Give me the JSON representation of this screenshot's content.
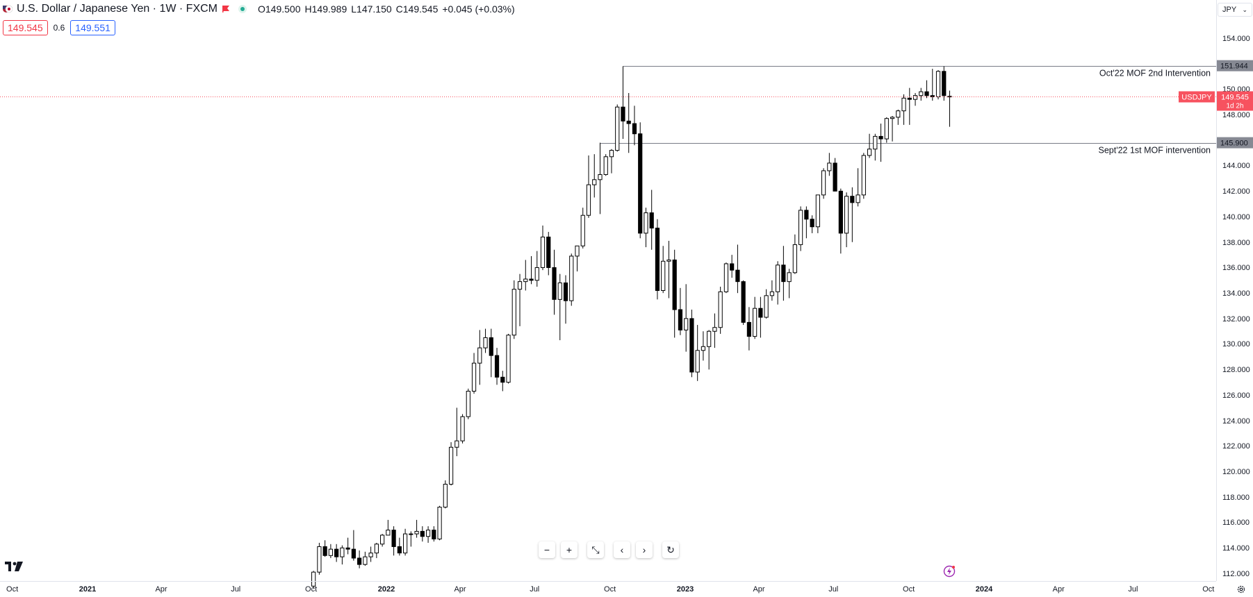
{
  "header": {
    "symbol_title": "U.S. Dollar / Japanese Yen · 1W · FXCM",
    "ohlc": {
      "o_label": "O",
      "o_value": "149.500",
      "h_label": "H",
      "h_value": "149.989",
      "l_label": "L",
      "l_value": "147.150",
      "c_label": "C",
      "c_value": "149.545",
      "change": "+0.045 (+0.03%)"
    },
    "bid": "149.545",
    "spread": "0.6",
    "ask": "149.551"
  },
  "currency_select": {
    "value": "JPY"
  },
  "colors": {
    "up_fill": "#ffffff",
    "down_fill": "#000000",
    "candle_stroke": "#000000",
    "price_line": "#f7525f",
    "level_line": "#787b86",
    "level_label_bg": "#868993",
    "bid": "#f23645",
    "ask": "#2962ff"
  },
  "chart_data": {
    "type": "candlestick",
    "title": "U.S. Dollar / Japanese Yen · 1W · FXCM",
    "y_axis_ticks": [
      "112.000",
      "114.000",
      "116.000",
      "118.000",
      "120.000",
      "122.000",
      "124.000",
      "126.000",
      "128.000",
      "130.000",
      "132.000",
      "134.000",
      "136.000",
      "138.000",
      "140.000",
      "142.000",
      "144.000",
      "146.000",
      "148.000",
      "150.000",
      "152.000",
      "154.000"
    ],
    "ylim": [
      111.5,
      157.1
    ],
    "x_axis_ticks": [
      {
        "date": "2020-10-01",
        "label": "Oct",
        "bold": false
      },
      {
        "date": "2021-01-01",
        "label": "2021",
        "bold": true
      },
      {
        "date": "2021-04-01",
        "label": "Apr",
        "bold": false
      },
      {
        "date": "2021-07-01",
        "label": "Jul",
        "bold": false
      },
      {
        "date": "2021-10-01",
        "label": "Oct",
        "bold": false
      },
      {
        "date": "2022-01-01",
        "label": "2022",
        "bold": true
      },
      {
        "date": "2022-04-01",
        "label": "Apr",
        "bold": false
      },
      {
        "date": "2022-07-01",
        "label": "Jul",
        "bold": false
      },
      {
        "date": "2022-10-01",
        "label": "Oct",
        "bold": false
      },
      {
        "date": "2023-01-01",
        "label": "2023",
        "bold": true
      },
      {
        "date": "2023-04-01",
        "label": "Apr",
        "bold": false
      },
      {
        "date": "2023-07-01",
        "label": "Jul",
        "bold": false
      },
      {
        "date": "2023-10-01",
        "label": "Oct",
        "bold": false
      },
      {
        "date": "2024-01-01",
        "label": "2024",
        "bold": true
      },
      {
        "date": "2024-04-01",
        "label": "Apr",
        "bold": false
      },
      {
        "date": "2024-07-01",
        "label": "Jul",
        "bold": false
      },
      {
        "date": "2024-10-01",
        "label": "Oct",
        "bold": false
      }
    ],
    "candles": [
      [
        "2021-10-04",
        111.1,
        112.3,
        110.9,
        112.2
      ],
      [
        "2021-10-11",
        112.2,
        114.5,
        112.0,
        114.2
      ],
      [
        "2021-10-18",
        114.2,
        114.7,
        113.4,
        113.5
      ],
      [
        "2021-10-25",
        113.5,
        114.4,
        113.3,
        114.0
      ],
      [
        "2021-11-01",
        114.0,
        114.4,
        113.0,
        113.4
      ],
      [
        "2021-11-08",
        113.4,
        114.3,
        112.8,
        114.1
      ],
      [
        "2021-11-15",
        114.1,
        114.9,
        113.6,
        114.0
      ],
      [
        "2021-11-22",
        114.0,
        115.5,
        113.1,
        113.3
      ],
      [
        "2021-11-29",
        113.3,
        113.9,
        112.5,
        112.8
      ],
      [
        "2021-12-06",
        112.8,
        113.8,
        112.7,
        113.4
      ],
      [
        "2021-12-13",
        113.4,
        114.2,
        113.0,
        113.7
      ],
      [
        "2021-12-20",
        113.7,
        114.5,
        113.3,
        114.4
      ],
      [
        "2021-12-27",
        114.4,
        115.2,
        114.2,
        115.1
      ],
      [
        "2022-01-03",
        115.1,
        116.3,
        115.1,
        115.5
      ],
      [
        "2022-01-10",
        115.5,
        115.8,
        113.5,
        114.2
      ],
      [
        "2022-01-17",
        114.2,
        114.9,
        113.5,
        113.7
      ],
      [
        "2022-01-24",
        113.7,
        115.6,
        113.5,
        115.2
      ],
      [
        "2022-01-31",
        115.2,
        115.4,
        114.2,
        115.2
      ],
      [
        "2022-02-07",
        115.2,
        116.3,
        114.9,
        115.4
      ],
      [
        "2022-02-14",
        115.4,
        115.8,
        114.6,
        115.0
      ],
      [
        "2022-02-21",
        115.0,
        115.8,
        114.5,
        115.5
      ],
      [
        "2022-02-28",
        115.5,
        115.8,
        114.6,
        114.8
      ],
      [
        "2022-03-07",
        114.8,
        117.4,
        114.7,
        117.3
      ],
      [
        "2022-03-14",
        117.3,
        119.4,
        117.2,
        119.1
      ],
      [
        "2022-03-21",
        119.1,
        122.4,
        119.0,
        122.0
      ],
      [
        "2022-03-28",
        122.0,
        125.1,
        121.3,
        122.5
      ],
      [
        "2022-04-04",
        122.5,
        124.6,
        122.3,
        124.4
      ],
      [
        "2022-04-11",
        124.4,
        126.6,
        124.2,
        126.4
      ],
      [
        "2022-04-18",
        126.4,
        129.4,
        126.2,
        128.6
      ],
      [
        "2022-04-25",
        128.6,
        131.2,
        126.9,
        129.8
      ],
      [
        "2022-05-02",
        129.8,
        131.3,
        129.4,
        130.6
      ],
      [
        "2022-05-09",
        130.6,
        131.3,
        127.5,
        129.2
      ],
      [
        "2022-05-16",
        129.2,
        129.8,
        126.9,
        127.5
      ],
      [
        "2022-05-23",
        127.5,
        128.0,
        126.4,
        127.1
      ],
      [
        "2022-05-30",
        127.1,
        130.9,
        127.0,
        130.8
      ],
      [
        "2022-06-06",
        130.8,
        135.1,
        130.5,
        134.4
      ],
      [
        "2022-06-13",
        134.4,
        135.6,
        131.5,
        135.0
      ],
      [
        "2022-06-20",
        135.0,
        136.7,
        134.3,
        135.2
      ],
      [
        "2022-06-27",
        135.2,
        137.0,
        134.8,
        135.1
      ],
      [
        "2022-07-04",
        135.1,
        137.4,
        134.6,
        136.1
      ],
      [
        "2022-07-11",
        136.1,
        139.4,
        135.9,
        138.5
      ],
      [
        "2022-07-18",
        138.5,
        138.9,
        135.5,
        136.1
      ],
      [
        "2022-07-25",
        136.1,
        137.5,
        132.4,
        133.6
      ],
      [
        "2022-08-01",
        133.6,
        135.6,
        130.4,
        134.9
      ],
      [
        "2022-08-08",
        134.9,
        135.5,
        131.7,
        133.5
      ],
      [
        "2022-08-15",
        133.5,
        137.2,
        133.1,
        137.0
      ],
      [
        "2022-08-22",
        137.0,
        137.8,
        135.8,
        137.8
      ],
      [
        "2022-08-29",
        137.8,
        140.8,
        137.6,
        140.2
      ],
      [
        "2022-09-05",
        140.2,
        144.9,
        140.0,
        142.6
      ],
      [
        "2022-09-12",
        142.6,
        145.0,
        141.6,
        143.0
      ],
      [
        "2022-09-19",
        143.0,
        145.9,
        140.3,
        143.4
      ],
      [
        "2022-09-26",
        143.4,
        145.0,
        143.3,
        144.8
      ],
      [
        "2022-10-03",
        144.8,
        145.4,
        143.5,
        145.3
      ],
      [
        "2022-10-10",
        145.3,
        148.9,
        145.2,
        148.7
      ],
      [
        "2022-10-17",
        148.7,
        151.9,
        146.2,
        147.6
      ],
      [
        "2022-10-24",
        147.6,
        149.8,
        145.1,
        147.4
      ],
      [
        "2022-10-31",
        147.4,
        148.8,
        145.7,
        146.6
      ],
      [
        "2022-11-07",
        146.6,
        147.5,
        138.4,
        138.8
      ],
      [
        "2022-11-14",
        138.8,
        140.8,
        137.7,
        140.4
      ],
      [
        "2022-11-21",
        140.4,
        142.2,
        137.5,
        139.2
      ],
      [
        "2022-11-28",
        139.2,
        139.9,
        133.6,
        134.3
      ],
      [
        "2022-12-05",
        134.3,
        137.8,
        134.1,
        136.6
      ],
      [
        "2022-12-12",
        136.6,
        138.2,
        133.7,
        136.7
      ],
      [
        "2022-12-19",
        136.7,
        137.5,
        130.6,
        132.8
      ],
      [
        "2022-12-26",
        132.8,
        134.5,
        130.8,
        131.2
      ],
      [
        "2023-01-02",
        131.2,
        134.8,
        129.5,
        132.1
      ],
      [
        "2023-01-09",
        132.1,
        132.8,
        127.5,
        127.9
      ],
      [
        "2023-01-16",
        127.9,
        131.6,
        127.2,
        129.6
      ],
      [
        "2023-01-23",
        129.6,
        131.1,
        128.8,
        129.9
      ],
      [
        "2023-01-30",
        129.9,
        131.2,
        128.1,
        131.1
      ],
      [
        "2023-02-06",
        131.1,
        132.5,
        129.8,
        131.4
      ],
      [
        "2023-02-13",
        131.4,
        134.6,
        130.9,
        134.2
      ],
      [
        "2023-02-20",
        134.2,
        136.5,
        134.1,
        136.4
      ],
      [
        "2023-02-27",
        136.4,
        137.1,
        135.3,
        135.9
      ],
      [
        "2023-03-06",
        135.9,
        137.9,
        134.1,
        135.0
      ],
      [
        "2023-03-13",
        135.0,
        135.1,
        131.6,
        131.8
      ],
      [
        "2023-03-20",
        131.8,
        133.0,
        129.6,
        130.7
      ],
      [
        "2023-03-27",
        130.7,
        133.8,
        130.5,
        132.9
      ],
      [
        "2023-04-03",
        132.9,
        133.8,
        130.6,
        132.2
      ],
      [
        "2023-04-10",
        132.2,
        134.4,
        132.1,
        133.9
      ],
      [
        "2023-04-17",
        133.9,
        135.1,
        133.5,
        134.2
      ],
      [
        "2023-04-24",
        134.2,
        136.6,
        133.2,
        136.3
      ],
      [
        "2023-05-01",
        136.3,
        137.8,
        133.5,
        135.0
      ],
      [
        "2023-05-08",
        135.0,
        136.0,
        133.7,
        135.7
      ],
      [
        "2023-05-15",
        135.7,
        138.7,
        135.6,
        137.9
      ],
      [
        "2023-05-22",
        137.9,
        140.9,
        137.4,
        140.6
      ],
      [
        "2023-05-29",
        140.6,
        140.9,
        138.4,
        139.9
      ],
      [
        "2023-06-05",
        139.9,
        140.2,
        138.8,
        139.3
      ],
      [
        "2023-06-12",
        139.3,
        141.5,
        138.8,
        141.8
      ],
      [
        "2023-06-19",
        141.8,
        143.9,
        141.5,
        143.7
      ],
      [
        "2023-06-26",
        143.7,
        145.1,
        143.3,
        144.3
      ],
      [
        "2023-07-03",
        144.3,
        144.7,
        142.1,
        142.1
      ],
      [
        "2023-07-10",
        142.1,
        142.3,
        137.2,
        138.8
      ],
      [
        "2023-07-17",
        138.8,
        142.0,
        137.7,
        141.7
      ],
      [
        "2023-07-24",
        141.7,
        142.4,
        138.1,
        141.2
      ],
      [
        "2023-07-31",
        141.2,
        143.9,
        140.9,
        141.8
      ],
      [
        "2023-08-07",
        141.8,
        145.1,
        141.5,
        144.9
      ],
      [
        "2023-08-14",
        144.9,
        146.6,
        144.7,
        145.4
      ],
      [
        "2023-08-21",
        145.4,
        146.6,
        144.5,
        146.4
      ],
      [
        "2023-08-28",
        146.4,
        147.4,
        144.4,
        146.2
      ],
      [
        "2023-09-04",
        146.2,
        147.9,
        145.9,
        147.8
      ],
      [
        "2023-09-11",
        147.8,
        148.0,
        146.0,
        147.9
      ],
      [
        "2023-09-18",
        147.9,
        148.5,
        147.3,
        148.4
      ],
      [
        "2023-09-25",
        148.4,
        149.7,
        147.3,
        149.4
      ],
      [
        "2023-10-02",
        149.4,
        150.2,
        147.3,
        149.3
      ],
      [
        "2023-10-09",
        149.3,
        149.8,
        148.8,
        149.6
      ],
      [
        "2023-10-16",
        149.6,
        150.2,
        149.2,
        149.9
      ],
      [
        "2023-10-23",
        149.9,
        150.8,
        149.4,
        149.6
      ],
      [
        "2023-10-30",
        149.6,
        151.7,
        149.2,
        149.5
      ],
      [
        "2023-11-06",
        149.5,
        151.6,
        149.3,
        151.5
      ],
      [
        "2023-11-13",
        151.5,
        151.9,
        149.2,
        149.6
      ],
      [
        "2023-11-20",
        149.5,
        149.989,
        147.15,
        149.545
      ]
    ],
    "horizontal_levels": [
      {
        "value": 151.944,
        "label": "151.944",
        "note": "Oct'22 MOF 2nd Intervention",
        "start_date": "2022-10-17"
      },
      {
        "value": 145.9,
        "label": "145.900",
        "note": "Sept'22 1st MOF intervention",
        "start_date": "2022-09-19"
      }
    ],
    "current_price": {
      "value": 149.545,
      "label": "149.545",
      "symbol": "USDJPY",
      "countdown": "1d 2h"
    },
    "grid": false
  },
  "time_axis": {
    "labels": [
      "Oct",
      "2021",
      "Apr",
      "Jul",
      "Oct",
      "2022",
      "Apr",
      "Jul",
      "Oct",
      "2023",
      "Apr",
      "Jul",
      "Oct",
      "2024",
      "Apr",
      "Jul",
      "Oct"
    ]
  },
  "toolbar": {
    "zoom_out_glyph": "−",
    "zoom_in_glyph": "+",
    "reset_glyph": "⤡",
    "scroll_left_glyph": "‹",
    "scroll_right_glyph": "›",
    "refresh_glyph": "↻"
  }
}
